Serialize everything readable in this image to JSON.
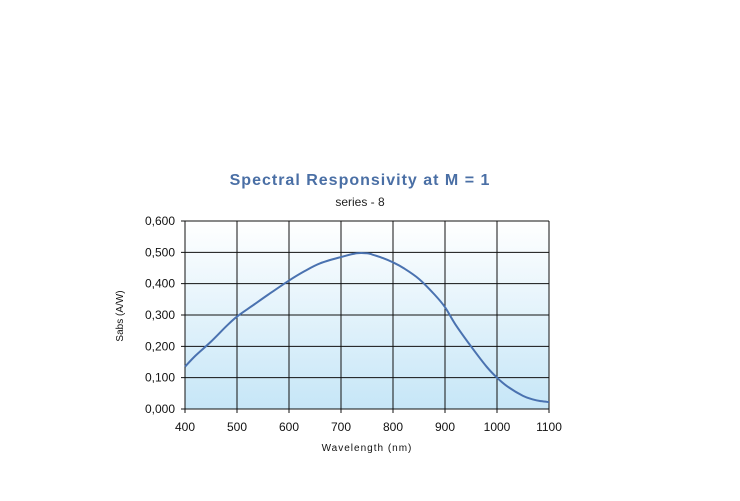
{
  "chart_data": {
    "type": "line",
    "title": "Spectral Responsivity at M = 1",
    "subtitle": "series - 8",
    "xlabel": "Wavelength (nm)",
    "ylabel": "Sabs (A/W)",
    "xlim": [
      400,
      1100
    ],
    "ylim": [
      0,
      0.6
    ],
    "x_ticks": [
      400,
      500,
      600,
      700,
      800,
      900,
      1000,
      1100
    ],
    "x_tick_labels": [
      "400",
      "500",
      "600",
      "700",
      "800",
      "900",
      "1000",
      "1100"
    ],
    "y_ticks": [
      0,
      0.1,
      0.2,
      0.3,
      0.4,
      0.5,
      0.6
    ],
    "y_tick_labels": [
      "0,000",
      "0,100",
      "0,200",
      "0,300",
      "0,400",
      "0,500",
      "0,600"
    ],
    "grid": true,
    "colors": {
      "line": "#4a72b0",
      "title": "#4a6fa5",
      "grid": "#111111",
      "background_top": "#ffffff",
      "background_bottom": "#c6e6f7"
    },
    "series": [
      {
        "x": [
          400,
          420,
          450,
          480,
          500,
          530,
          560,
          600,
          630,
          660,
          700,
          730,
          750,
          760,
          780,
          800,
          820,
          850,
          880,
          900,
          920,
          950,
          980,
          1000,
          1020,
          1050,
          1070,
          1085,
          1100
        ],
        "y": [
          0.135,
          0.17,
          0.215,
          0.265,
          0.295,
          0.33,
          0.365,
          0.41,
          0.44,
          0.465,
          0.485,
          0.497,
          0.497,
          0.493,
          0.482,
          0.468,
          0.45,
          0.415,
          0.365,
          0.325,
          0.27,
          0.2,
          0.135,
          0.1,
          0.072,
          0.042,
          0.03,
          0.025,
          0.022
        ]
      }
    ]
  }
}
